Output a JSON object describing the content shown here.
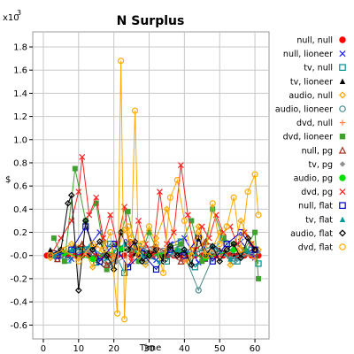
{
  "chart_data": {
    "type": "line",
    "title": "N Surplus",
    "xlabel": "Time",
    "ylabel": "$",
    "y_multiplier": "x10",
    "y_multiplier_exp": "3",
    "xlim": [
      -3,
      64
    ],
    "ylim": [
      -0.72,
      1.93
    ],
    "x_ticks": [
      0,
      10,
      20,
      30,
      40,
      50,
      60
    ],
    "y_ticks": [
      -0.6,
      -0.4,
      -0.2,
      0.0,
      0.2,
      0.4,
      0.6,
      0.8,
      1.0,
      1.2,
      1.4,
      1.6,
      1.8
    ],
    "y_tick_labels": [
      "-0.6",
      "-0.4",
      "-0.2",
      "-0.0",
      "0.2",
      "0.4",
      "0.6",
      "0.8",
      "1.0",
      "1.2",
      "1.4",
      "1.6",
      "1.8"
    ],
    "grid": true,
    "legend_position": "right",
    "series": [
      {
        "name": "null, null",
        "color": "#ff0000",
        "marker": "circle-filled",
        "x": [
          1,
          3,
          5,
          7,
          9,
          11,
          13,
          15,
          17,
          19,
          21,
          23,
          25,
          27,
          29,
          31,
          33,
          35,
          37,
          39,
          41,
          43,
          45,
          47,
          49,
          51,
          53,
          55,
          57,
          59,
          61
        ],
        "y": [
          0,
          0,
          0,
          0,
          0,
          0,
          0,
          0,
          0,
          0,
          0,
          0,
          0,
          0,
          0,
          0,
          0,
          0,
          0,
          0,
          0,
          0,
          0,
          0,
          0,
          0,
          0,
          0,
          0,
          0,
          0
        ]
      },
      {
        "name": "null, lioneer",
        "color": "#2020ff",
        "marker": "x",
        "x": [
          4,
          8,
          12,
          16,
          20,
          24,
          28,
          32,
          36,
          40,
          44,
          48,
          52,
          56,
          60
        ],
        "y": [
          0.02,
          -0.03,
          0.05,
          0.2,
          -0.05,
          0.12,
          0.05,
          -0.04,
          0.1,
          0.15,
          -0.06,
          0.08,
          0.02,
          0.12,
          -0.02
        ]
      },
      {
        "name": "tv, null",
        "color": "#009090",
        "marker": "square-open",
        "x": [
          3,
          7,
          11,
          15,
          19,
          23,
          27,
          31,
          35,
          39,
          43,
          47,
          51,
          55,
          59,
          61
        ],
        "y": [
          0.0,
          -0.04,
          0.05,
          -0.06,
          0.1,
          -0.15,
          0.08,
          0.02,
          -0.05,
          0.12,
          -0.1,
          0.0,
          0.15,
          -0.05,
          0.05,
          -0.07
        ]
      },
      {
        "name": "tv, lioneer",
        "color": "#000000",
        "marker": "triangle-filled",
        "x": [
          2,
          6,
          10,
          14,
          18,
          22,
          26,
          30,
          34,
          38,
          42,
          46,
          50,
          54,
          58
        ],
        "y": [
          0.05,
          0.02,
          0.07,
          -0.02,
          -0.12,
          0.05,
          0.02,
          0.04,
          0.0,
          0.06,
          0.02,
          -0.03,
          0.05,
          0.01,
          0.03
        ]
      },
      {
        "name": "audio, null",
        "color": "#ffa500",
        "marker": "diamond-open",
        "x": [
          2,
          5,
          8,
          11,
          14,
          17,
          20,
          23,
          26,
          29,
          32,
          35,
          38,
          41,
          44,
          47,
          50,
          53,
          56,
          59,
          61
        ],
        "y": [
          -0.02,
          0.05,
          0.1,
          0.08,
          -0.1,
          0.12,
          -0.05,
          0.22,
          0.05,
          -0.08,
          0.15,
          0.4,
          0.05,
          -0.05,
          0.25,
          0.0,
          0.2,
          -0.08,
          0.3,
          0.1,
          0.05
        ]
      },
      {
        "name": "audio, lioneer",
        "color": "#4a8a8a",
        "marker": "circle-open",
        "x": [
          4,
          9,
          14,
          19,
          24,
          29,
          34,
          39,
          44,
          49,
          54,
          59
        ],
        "y": [
          -0.03,
          0.06,
          0.02,
          -0.08,
          0.1,
          -0.05,
          0.04,
          0.08,
          -0.3,
          0.05,
          -0.05,
          0.02
        ]
      },
      {
        "name": "dvd, null",
        "color": "#ff8040",
        "marker": "plus",
        "x": [
          5,
          10,
          15,
          20,
          25,
          30,
          35,
          40,
          45,
          50,
          55,
          60
        ],
        "y": [
          0.05,
          -0.03,
          0.08,
          0.0,
          0.12,
          -0.02,
          0.06,
          -0.05,
          0.1,
          0.0,
          0.05,
          -0.03
        ]
      },
      {
        "name": "dvd, lioneer",
        "color": "#40a030",
        "marker": "square-filled",
        "x": [
          3,
          6,
          9,
          12,
          15,
          18,
          21,
          24,
          27,
          30,
          33,
          36,
          39,
          42,
          45,
          48,
          51,
          54,
          57,
          60,
          61
        ],
        "y": [
          0.15,
          -0.05,
          0.75,
          0.3,
          0.45,
          -0.12,
          0.1,
          0.38,
          -0.05,
          0.2,
          0.0,
          0.08,
          0.1,
          0.3,
          -0.05,
          0.4,
          0.15,
          0.1,
          0.05,
          0.2,
          -0.2
        ]
      },
      {
        "name": "null, pg",
        "color": "#a03020",
        "marker": "triangle-open",
        "x": [
          4,
          11,
          18,
          25,
          32,
          39,
          46,
          53,
          60
        ],
        "y": [
          -0.03,
          0.1,
          -0.08,
          0.05,
          0.08,
          -0.05,
          0.12,
          0.0,
          0.05
        ]
      },
      {
        "name": "tv, pg",
        "color": "#909090",
        "marker": "diamond-filled",
        "x": [
          5,
          13,
          21,
          29,
          37,
          45,
          53,
          61
        ],
        "y": [
          0.0,
          0.05,
          -0.05,
          0.08,
          0.0,
          0.05,
          -0.02,
          0.03
        ]
      },
      {
        "name": "audio, pg",
        "color": "#00dd00",
        "marker": "circle-filled",
        "x": [
          6,
          14,
          22,
          30,
          38,
          46,
          54
        ],
        "y": [
          0.02,
          -0.03,
          0.06,
          0.0,
          0.04,
          -0.02,
          0.05
        ]
      },
      {
        "name": "dvd, pg",
        "color": "#ff2020",
        "marker": "x",
        "x": [
          2,
          5,
          8,
          10,
          11,
          13,
          15,
          17,
          19,
          21,
          23,
          25,
          27,
          29,
          31,
          33,
          35,
          37,
          39,
          41,
          43,
          45,
          47,
          49,
          51,
          53,
          55,
          57,
          59
        ],
        "y": [
          0.0,
          0.15,
          0.3,
          0.55,
          0.85,
          0.35,
          0.5,
          0.15,
          0.35,
          0.1,
          0.42,
          -0.05,
          0.3,
          0.1,
          0.0,
          0.55,
          0.1,
          0.2,
          0.78,
          0.35,
          0.05,
          0.25,
          0.15,
          0.35,
          0.2,
          0.25,
          0.1,
          0.2,
          0.1
        ]
      },
      {
        "name": "null, flat",
        "color": "#0000cc",
        "marker": "square-open",
        "x": [
          4,
          8,
          12,
          16,
          20,
          24,
          28,
          32,
          36,
          40,
          44,
          48,
          52,
          56,
          60
        ],
        "y": [
          0.0,
          0.05,
          0.25,
          -0.05,
          0.1,
          -0.1,
          0.02,
          -0.12,
          0.05,
          0.0,
          0.15,
          -0.05,
          0.1,
          0.2,
          0.05
        ]
      },
      {
        "name": "tv, flat",
        "color": "#009999",
        "marker": "triangle-filled",
        "x": [
          3,
          8,
          13,
          18,
          23,
          28,
          33,
          38,
          43,
          48,
          53,
          58
        ],
        "y": [
          0.0,
          0.05,
          0.08,
          -0.02,
          0.1,
          0.0,
          -0.05,
          0.05,
          0.02,
          0.08,
          -0.03,
          0.04
        ]
      },
      {
        "name": "audio, flat",
        "color": "#000000",
        "marker": "diamond-open",
        "x": [
          2,
          5,
          7,
          8,
          10,
          12,
          14,
          16,
          18,
          20,
          22,
          24,
          26,
          28,
          30,
          32,
          34,
          36,
          38,
          40,
          42,
          44,
          46,
          48,
          50,
          52,
          54,
          56,
          58,
          60
        ],
        "y": [
          0.0,
          0.05,
          0.45,
          0.52,
          -0.3,
          0.3,
          0.05,
          0.12,
          0.0,
          -0.12,
          0.2,
          0.05,
          0.12,
          -0.05,
          0.0,
          0.05,
          -0.05,
          0.08,
          0.0,
          0.05,
          -0.08,
          0.15,
          0.0,
          0.08,
          -0.05,
          0.05,
          0.1,
          -0.02,
          0.15,
          0.05
        ]
      },
      {
        "name": "dvd, flat",
        "color": "#ffaa00",
        "marker": "circle-open",
        "x": [
          2,
          6,
          10,
          14,
          17,
          19,
          21,
          22,
          23,
          24,
          25,
          26,
          27,
          28,
          30,
          32,
          34,
          36,
          38,
          40,
          42,
          44,
          46,
          48,
          50,
          52,
          54,
          56,
          58,
          60,
          61
        ],
        "y": [
          0.0,
          0.05,
          -0.05,
          0.1,
          0.05,
          0.2,
          -0.5,
          1.68,
          -0.55,
          0.25,
          0.15,
          1.25,
          0.0,
          0.1,
          0.25,
          0.1,
          -0.15,
          0.5,
          0.65,
          0.3,
          0.0,
          0.2,
          0.0,
          0.45,
          0.1,
          0.25,
          0.5,
          0.05,
          0.55,
          0.7,
          0.35
        ]
      }
    ]
  }
}
